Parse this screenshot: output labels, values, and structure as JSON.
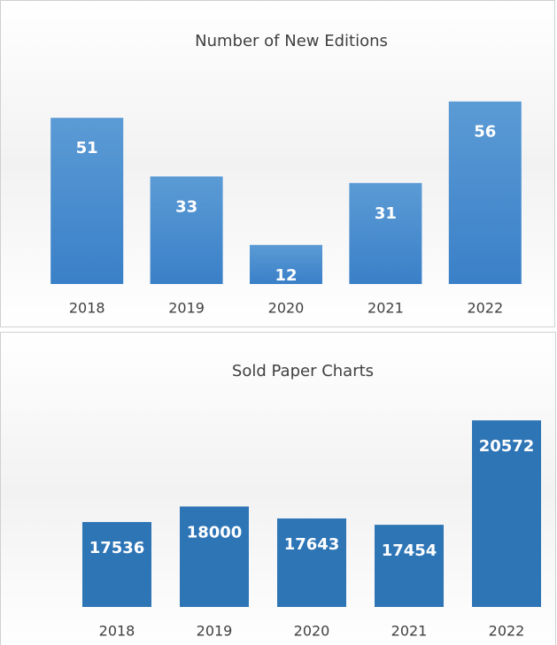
{
  "chart_data": [
    {
      "type": "bar",
      "title": "Number of New Editions",
      "categories": [
        "2018",
        "2019",
        "2020",
        "2021",
        "2022"
      ],
      "values": [
        51,
        33,
        12,
        31,
        56
      ],
      "color": "#5b9bd5",
      "ylim": [
        0,
        60
      ]
    },
    {
      "type": "bar",
      "title": "Sold Paper Charts",
      "categories": [
        "2018",
        "2019",
        "2020",
        "2021",
        "2022"
      ],
      "values": [
        17536,
        18000,
        17643,
        17454,
        20572
      ],
      "color": "#2e75b6",
      "ylim": [
        15000,
        21500
      ]
    }
  ]
}
